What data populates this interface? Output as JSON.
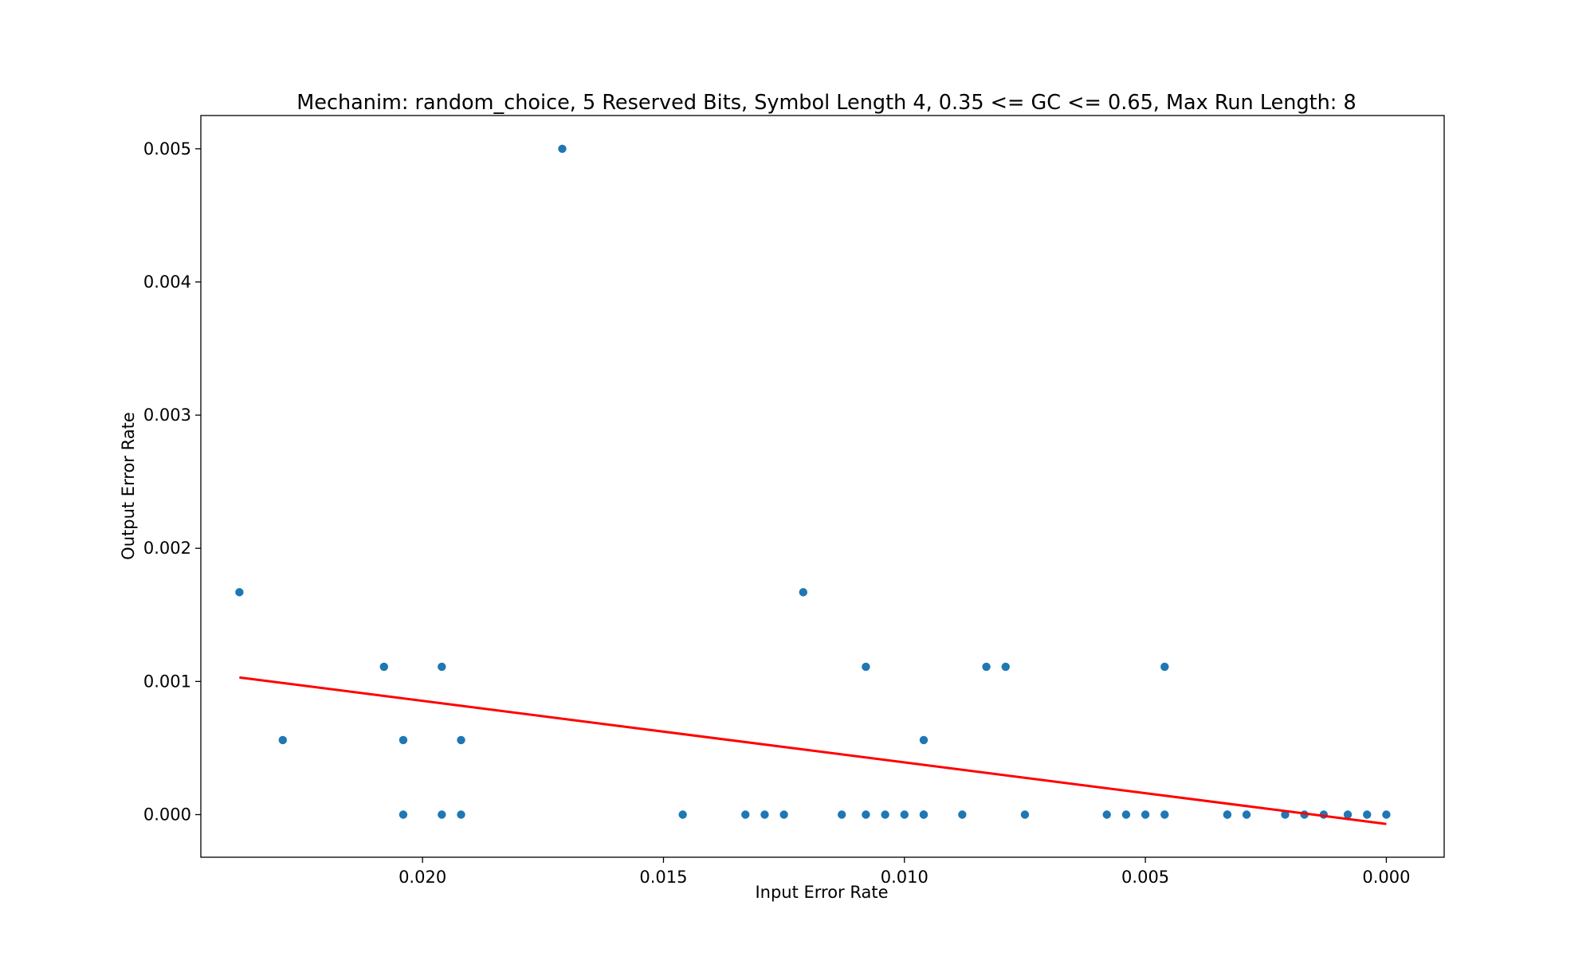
{
  "chart_data": {
    "type": "scatter",
    "title": "Mechanim: random_choice, 5 Reserved Bits, Symbol Length 4, 0.35 <= GC <= 0.65, Max Run Length: 8",
    "xlabel": "Input Error Rate",
    "ylabel": "Output Error Rate",
    "x_inverted": true,
    "xlim": [
      0.0246,
      -0.0012
    ],
    "ylim": [
      -0.00032,
      0.00525
    ],
    "xticks": [
      0.02,
      0.015,
      0.01,
      0.005,
      0.0
    ],
    "xtick_labels": [
      "0.020",
      "0.015",
      "0.010",
      "0.005",
      "0.000"
    ],
    "yticks": [
      0.0,
      0.001,
      0.002,
      0.003,
      0.004,
      0.005
    ],
    "ytick_labels": [
      "0.000",
      "0.001",
      "0.002",
      "0.003",
      "0.004",
      "0.005"
    ],
    "grid": false,
    "colors": {
      "points": "#1f77b4",
      "trend": "#ff0000"
    },
    "series": [
      {
        "kind": "points",
        "x": [
          0.0,
          0.0004,
          0.0008,
          0.0013,
          0.0017,
          0.0021,
          0.0029,
          0.0033,
          0.0033,
          0.0046,
          0.0046,
          0.005,
          0.0054,
          0.0058,
          0.0075,
          0.0079,
          0.0083,
          0.0088,
          0.0096,
          0.0096,
          0.0096,
          0.01,
          0.0104,
          0.0108,
          0.0108,
          0.0113,
          0.0121,
          0.0125,
          0.0129,
          0.0133,
          0.0146,
          0.0171,
          0.0192,
          0.0192,
          0.0196,
          0.0196,
          0.0204,
          0.0204,
          0.0208,
          0.0229,
          0.0238
        ],
        "y": [
          0.0,
          0.0,
          0.0,
          0.0,
          0.0,
          0.0,
          0.0,
          0.0,
          0.0,
          0.0,
          0.00111,
          0.0,
          0.0,
          0.0,
          0.0,
          0.00111,
          0.00111,
          0.0,
          0.0,
          0.0,
          0.00056,
          0.0,
          0.0,
          0.0,
          0.00111,
          0.0,
          0.00167,
          0.0,
          0.0,
          0.0,
          0.0,
          0.005,
          0.0,
          0.00056,
          0.0,
          0.00111,
          0.0,
          0.00056,
          0.00111,
          0.00056,
          0.00167
        ]
      },
      {
        "kind": "line",
        "x": [
          0.0238,
          0.0
        ],
        "y": [
          0.00103,
          -7e-05
        ]
      }
    ]
  }
}
